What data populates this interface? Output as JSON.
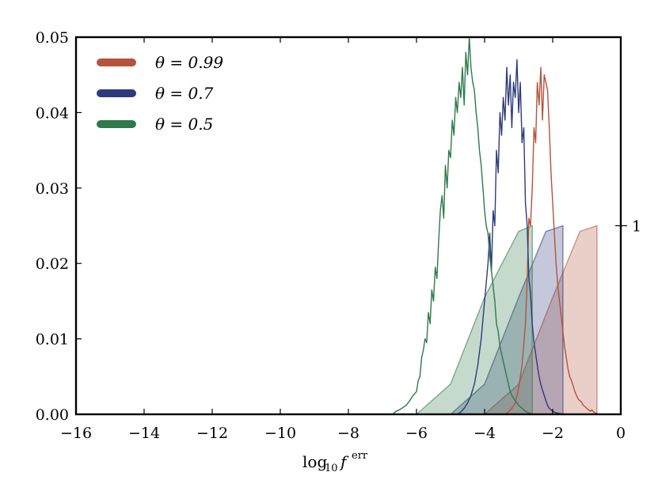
{
  "chart_data": {
    "type": "line",
    "title": "",
    "xlabel": {
      "base": "log",
      "sub": "10",
      "var": "f",
      "sup": "err"
    },
    "ylabel": "",
    "xlim": [
      -16,
      0
    ],
    "ylim": [
      0,
      0.05
    ],
    "xticks": [
      -16,
      -14,
      -12,
      -10,
      -8,
      -6,
      -4,
      -2,
      0
    ],
    "xtick_labels": [
      "−16",
      "−14",
      "−12",
      "−10",
      "−8",
      "−6",
      "−4",
      "−2",
      "0"
    ],
    "yticks": [
      0,
      0.01,
      0.02,
      0.03,
      0.04,
      0.05
    ],
    "ytick_labels": [
      "0.00",
      "0.01",
      "0.02",
      "0.03",
      "0.04",
      "0.05"
    ],
    "right_axis": {
      "ticks": [
        1
      ],
      "tick_labels": [
        "1"
      ],
      "range": [
        0,
        2
      ]
    },
    "legend_position": "upper-left",
    "series": [
      {
        "name": "θ = 0.99",
        "legend_label": "θ = 0.99",
        "color": "#b5533c",
        "histogram": {
          "x": [
            -3.4,
            -3.3,
            -3.2,
            -3.1,
            -3.0,
            -2.9,
            -2.8,
            -2.75,
            -2.7,
            -2.65,
            -2.6,
            -2.55,
            -2.5,
            -2.45,
            -2.4,
            -2.35,
            -2.3,
            -2.25,
            -2.2,
            -2.15,
            -2.1,
            -2.05,
            -2.0,
            -1.95,
            -1.9,
            -1.85,
            -1.8,
            -1.75,
            -1.7,
            -1.65,
            -1.6,
            -1.55,
            -1.5,
            -1.45,
            -1.4,
            -1.35,
            -1.3,
            -1.25,
            -1.2,
            -1.15,
            -1.1,
            -1.05,
            -1.0,
            -0.95,
            -0.9,
            -0.85,
            -0.8,
            -0.75,
            -0.7,
            -0.65
          ],
          "y": [
            0.0,
            0.0003,
            0.0008,
            0.0015,
            0.0035,
            0.0065,
            0.012,
            0.018,
            0.026,
            0.025,
            0.03,
            0.038,
            0.036,
            0.044,
            0.041,
            0.046,
            0.039,
            0.045,
            0.044,
            0.043,
            0.038,
            0.032,
            0.028,
            0.024,
            0.02,
            0.017,
            0.015,
            0.013,
            0.011,
            0.009,
            0.0075,
            0.006,
            0.005,
            0.0045,
            0.0038,
            0.003,
            0.0025,
            0.002,
            0.0018,
            0.0016,
            0.0012,
            0.001,
            0.0008,
            0.0006,
            0.0004,
            0.0006,
            0.0003,
            0.0002,
            0.0001,
            0.0
          ]
        },
        "cumulative": {
          "x": [
            -4.0,
            -3.0,
            -2.0,
            -1.2,
            -0.7
          ],
          "y": [
            0.0,
            0.16,
            0.62,
            0.97,
            1.0
          ],
          "end": -0.7
        }
      },
      {
        "name": "θ = 0.7",
        "legend_label": "θ = 0.7",
        "color": "#2e3a7a",
        "histogram": {
          "x": [
            -4.8,
            -4.7,
            -4.6,
            -4.5,
            -4.4,
            -4.3,
            -4.2,
            -4.1,
            -4.0,
            -3.9,
            -3.85,
            -3.8,
            -3.75,
            -3.7,
            -3.65,
            -3.6,
            -3.55,
            -3.5,
            -3.45,
            -3.4,
            -3.35,
            -3.3,
            -3.25,
            -3.2,
            -3.15,
            -3.1,
            -3.05,
            -3.0,
            -2.95,
            -2.9,
            -2.85,
            -2.8,
            -2.75,
            -2.7,
            -2.65,
            -2.6,
            -2.55,
            -2.5,
            -2.45,
            -2.4,
            -2.35,
            -2.3,
            -2.25,
            -2.2,
            -2.15,
            -2.1,
            -2.0,
            -1.9,
            -1.8,
            -1.7
          ],
          "y": [
            0.0,
            0.0003,
            0.0008,
            0.0015,
            0.0025,
            0.004,
            0.0065,
            0.01,
            0.015,
            0.02,
            0.024,
            0.019,
            0.027,
            0.025,
            0.035,
            0.032,
            0.04,
            0.037,
            0.042,
            0.039,
            0.046,
            0.041,
            0.045,
            0.038,
            0.044,
            0.042,
            0.047,
            0.04,
            0.044,
            0.036,
            0.038,
            0.028,
            0.025,
            0.018,
            0.016,
            0.012,
            0.0095,
            0.008,
            0.0065,
            0.005,
            0.004,
            0.0032,
            0.0025,
            0.0018,
            0.0012,
            0.0008,
            0.0004,
            0.0002,
            0.0001,
            0.0
          ]
        },
        "cumulative": {
          "x": [
            -5.0,
            -4.0,
            -3.0,
            -2.2,
            -1.7
          ],
          "y": [
            0.0,
            0.16,
            0.62,
            0.97,
            1.0
          ],
          "end": -1.7
        }
      },
      {
        "name": "θ = 0.5",
        "legend_label": "θ = 0.5",
        "color": "#2e7a4a",
        "histogram": {
          "x": [
            -6.7,
            -6.6,
            -6.5,
            -6.4,
            -6.3,
            -6.2,
            -6.1,
            -6.0,
            -5.95,
            -5.9,
            -5.85,
            -5.8,
            -5.75,
            -5.7,
            -5.65,
            -5.6,
            -5.55,
            -5.5,
            -5.45,
            -5.4,
            -5.35,
            -5.3,
            -5.25,
            -5.2,
            -5.15,
            -5.1,
            -5.05,
            -5.0,
            -4.95,
            -4.9,
            -4.85,
            -4.8,
            -4.75,
            -4.7,
            -4.65,
            -4.6,
            -4.55,
            -4.5,
            -4.45,
            -4.4,
            -4.35,
            -4.3,
            -4.25,
            -4.2,
            -4.15,
            -4.1,
            -4.05,
            -4.0,
            -3.95,
            -3.9,
            -3.85,
            -3.8,
            -3.75,
            -3.7,
            -3.65,
            -3.6,
            -3.55,
            -3.5,
            -3.45,
            -3.4,
            -3.35,
            -3.3,
            -3.25,
            -3.2,
            -3.1,
            -3.0,
            -2.9,
            -2.8,
            -2.7,
            -2.6
          ],
          "y": [
            0.0,
            0.0004,
            0.0006,
            0.0009,
            0.0012,
            0.0018,
            0.0025,
            0.003,
            0.0045,
            0.005,
            0.0075,
            0.0085,
            0.01,
            0.0095,
            0.0135,
            0.012,
            0.0165,
            0.015,
            0.0195,
            0.018,
            0.023,
            0.027,
            0.029,
            0.026,
            0.033,
            0.03,
            0.035,
            0.034,
            0.039,
            0.037,
            0.042,
            0.04,
            0.044,
            0.042,
            0.046,
            0.041,
            0.048,
            0.045,
            0.05,
            0.046,
            0.044,
            0.043,
            0.04,
            0.038,
            0.035,
            0.033,
            0.03,
            0.027,
            0.025,
            0.024,
            0.021,
            0.019,
            0.017,
            0.015,
            0.012,
            0.011,
            0.009,
            0.008,
            0.007,
            0.006,
            0.005,
            0.004,
            0.003,
            0.0025,
            0.0018,
            0.0012,
            0.0008,
            0.0004,
            0.0002,
            0.0
          ]
        },
        "cumulative": {
          "x": [
            -6.0,
            -5.0,
            -4.0,
            -3.0,
            -2.6
          ],
          "y": [
            0.0,
            0.16,
            0.62,
            0.97,
            1.0
          ],
          "end": -2.6
        }
      }
    ]
  }
}
